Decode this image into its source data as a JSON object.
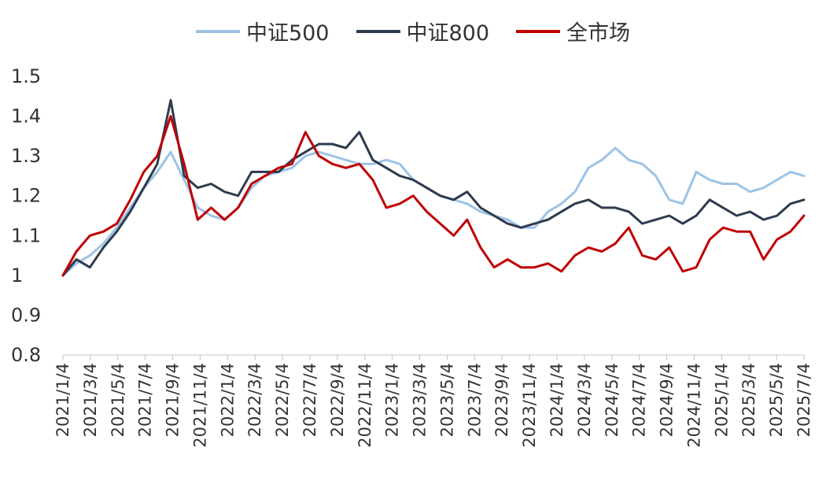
{
  "chart_data": {
    "type": "line",
    "title": "",
    "xlabel": "",
    "ylabel": "",
    "ylim": [
      0.8,
      1.5
    ],
    "y_ticks": [
      "1.5",
      "1.4",
      "1.3",
      "1.2",
      "1.1",
      "1",
      "0.9",
      "0.8"
    ],
    "x_ticks": [
      "2021/1/4",
      "2021/3/4",
      "2021/5/4",
      "2021/7/4",
      "2021/9/4",
      "2021/11/4",
      "2022/1/4",
      "2022/3/4",
      "2022/5/4",
      "2022/7/4",
      "2022/9/4",
      "2022/11/4",
      "2023/1/4",
      "2023/3/4",
      "2023/5/4",
      "2023/7/4",
      "2023/9/4",
      "2023/11/4",
      "2024/1/4",
      "2024/3/4",
      "2024/5/4",
      "2024/7/4",
      "2024/9/4",
      "2024/11/4",
      "2025/1/4",
      "2025/3/4",
      "2025/5/4",
      "2025/7/4"
    ],
    "grid": false,
    "legend_position": "top",
    "x": [
      "2021-01",
      "2021-02",
      "2021-03",
      "2021-04",
      "2021-05",
      "2021-06",
      "2021-07",
      "2021-08",
      "2021-09",
      "2021-10",
      "2021-11",
      "2021-12",
      "2022-01",
      "2022-02",
      "2022-03",
      "2022-04",
      "2022-05",
      "2022-06",
      "2022-07",
      "2022-08",
      "2022-09",
      "2022-10",
      "2022-11",
      "2022-12",
      "2023-01",
      "2023-02",
      "2023-03",
      "2023-04",
      "2023-05",
      "2023-06",
      "2023-07",
      "2023-08",
      "2023-09",
      "2023-10",
      "2023-11",
      "2023-12",
      "2024-01",
      "2024-02",
      "2024-03",
      "2024-04",
      "2024-05",
      "2024-06",
      "2024-07",
      "2024-08",
      "2024-09",
      "2024-10",
      "2024-11",
      "2024-12",
      "2025-01",
      "2025-02",
      "2025-03",
      "2025-04",
      "2025-05",
      "2025-06",
      "2025-07",
      "2025-08"
    ],
    "series": [
      {
        "name": "中证500",
        "color": "#9dc3e6",
        "values": [
          1.0,
          1.03,
          1.05,
          1.08,
          1.12,
          1.17,
          1.22,
          1.26,
          1.31,
          1.24,
          1.17,
          1.15,
          1.14,
          1.17,
          1.22,
          1.25,
          1.26,
          1.27,
          1.3,
          1.31,
          1.3,
          1.29,
          1.28,
          1.28,
          1.29,
          1.28,
          1.24,
          1.22,
          1.2,
          1.19,
          1.18,
          1.16,
          1.15,
          1.14,
          1.12,
          1.12,
          1.16,
          1.18,
          1.21,
          1.27,
          1.29,
          1.32,
          1.29,
          1.28,
          1.25,
          1.19,
          1.18,
          1.26,
          1.24,
          1.23,
          1.23,
          1.21,
          1.22,
          1.24,
          1.26,
          1.25
        ]
      },
      {
        "name": "中证800",
        "color": "#2e3b4e",
        "values": [
          1.0,
          1.04,
          1.02,
          1.07,
          1.11,
          1.16,
          1.22,
          1.28,
          1.44,
          1.25,
          1.22,
          1.23,
          1.21,
          1.2,
          1.26,
          1.26,
          1.26,
          1.29,
          1.31,
          1.33,
          1.33,
          1.32,
          1.36,
          1.29,
          1.27,
          1.25,
          1.24,
          1.22,
          1.2,
          1.19,
          1.21,
          1.17,
          1.15,
          1.13,
          1.12,
          1.13,
          1.14,
          1.16,
          1.18,
          1.19,
          1.17,
          1.17,
          1.16,
          1.13,
          1.14,
          1.15,
          1.13,
          1.15,
          1.19,
          1.17,
          1.15,
          1.16,
          1.14,
          1.15,
          1.18,
          1.19
        ]
      },
      {
        "name": "全市场",
        "color": "#c00000",
        "values": [
          1.0,
          1.06,
          1.1,
          1.11,
          1.13,
          1.19,
          1.26,
          1.3,
          1.4,
          1.28,
          1.14,
          1.17,
          1.14,
          1.17,
          1.23,
          1.25,
          1.27,
          1.28,
          1.36,
          1.3,
          1.28,
          1.27,
          1.28,
          1.24,
          1.17,
          1.18,
          1.2,
          1.16,
          1.13,
          1.1,
          1.14,
          1.07,
          1.02,
          1.04,
          1.02,
          1.02,
          1.03,
          1.01,
          1.05,
          1.07,
          1.06,
          1.08,
          1.12,
          1.05,
          1.04,
          1.07,
          1.01,
          1.02,
          1.09,
          1.12,
          1.11,
          1.11,
          1.04,
          1.09,
          1.11,
          1.15
        ]
      }
    ]
  }
}
